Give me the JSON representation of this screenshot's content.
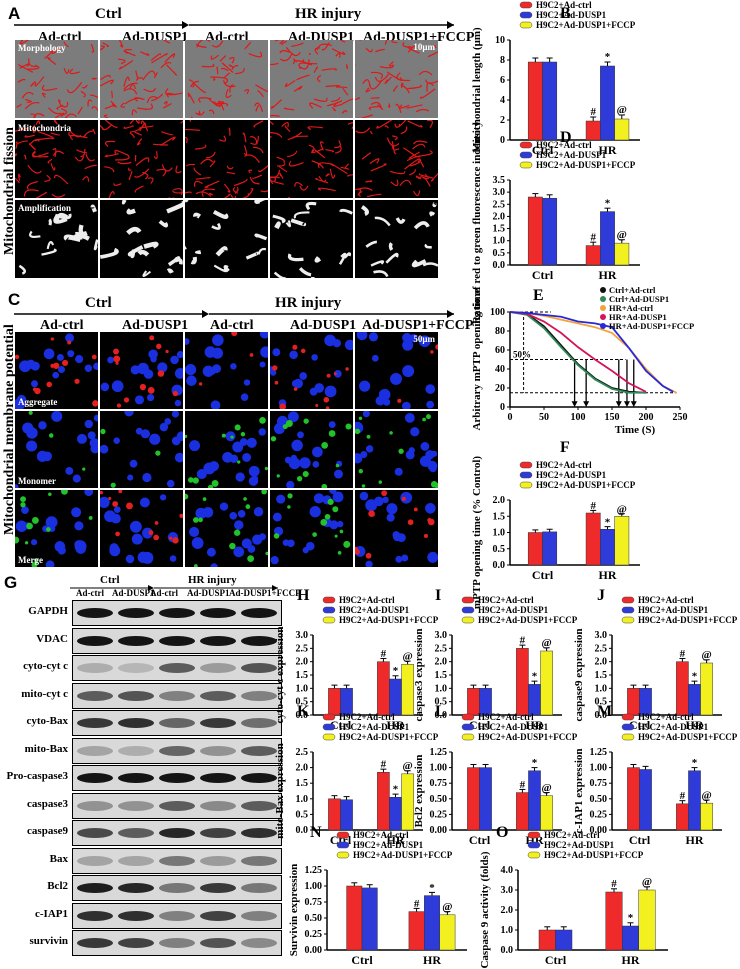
{
  "panelA": {
    "letter": "A",
    "groups": [
      "Ctrl",
      "HR injury"
    ],
    "columns": [
      "Ad-ctrl",
      "Ad-DUSP1",
      "Ad-ctrl",
      "Ad-DUSP1",
      "Ad-DUSP1+FCCP"
    ],
    "rows": [
      "Morphology",
      "Mitochondria",
      "Amplification"
    ],
    "side_label": "Mitochondrial fission",
    "scale": "10μm"
  },
  "panelC": {
    "letter": "C",
    "groups": [
      "Ctrl",
      "HR injury"
    ],
    "columns": [
      "Ad-ctrl",
      "Ad-DUSP1",
      "Ad-ctrl",
      "Ad-DUSP1",
      "Ad-DUSP1+FCCP"
    ],
    "rows": [
      "Aggregate",
      "Monomer",
      "Merge"
    ],
    "side_label": "Mitochondrial membrane potential",
    "scale": "50μm"
  },
  "panelG": {
    "letter": "G",
    "groups": [
      "Ctrl",
      "HR injury"
    ],
    "columns": [
      "Ad-ctrl",
      "Ad-DUSP1",
      "Ad-ctrl",
      "Ad-DUSP1",
      "Ad-DUSP1+FCCP"
    ],
    "bands": [
      "GAPDH",
      "VDAC",
      "cyto-cyt c",
      "mito-cyt c",
      "cyto-Bax",
      "mito-Bax",
      "Pro-caspase3",
      "caspase3",
      "caspase9",
      "Bax",
      "Bcl2",
      "c-IAP1",
      "survivin"
    ]
  },
  "legend": {
    "ctrl": "H9C2+Ad-ctrl",
    "dusp": "H9C2+Ad-DUSP1",
    "fccp": "H9C2+Ad-DUSP1+FCCP"
  },
  "colors": {
    "ctrl": "#ee2a2a",
    "dusp": "#2f3bd8",
    "fccp": "#f3f01f"
  },
  "chart_data": [
    {
      "id": "B",
      "type": "bar",
      "ylabel": "Mitochondrial length (μm)",
      "categories": [
        "Ctrl",
        "HR"
      ],
      "ylim": [
        0,
        10
      ],
      "ticks": [
        0,
        2,
        4,
        6,
        8,
        10
      ],
      "series": [
        {
          "name": "H9C2+Ad-ctrl",
          "values": [
            7.8,
            1.9
          ]
        },
        {
          "name": "H9C2+Ad-DUSP1",
          "values": [
            7.8,
            7.4
          ]
        },
        {
          "name": "H9C2+Ad-DUSP1+FCCP",
          "values": [
            null,
            2.1
          ]
        }
      ],
      "marks": [
        "#",
        "*",
        "@"
      ]
    },
    {
      "id": "D",
      "type": "bar",
      "ylabel": "Ratio of red to green fluorescence indensity",
      "categories": [
        "Ctrl",
        "HR"
      ],
      "ylim": [
        0,
        3.5
      ],
      "ticks": [
        0,
        0.5,
        1.0,
        1.5,
        2.0,
        2.5,
        3.0,
        3.5
      ],
      "series": [
        {
          "name": "H9C2+Ad-ctrl",
          "values": [
            2.8,
            0.8
          ]
        },
        {
          "name": "H9C2+Ad-DUSP1",
          "values": [
            2.75,
            2.2
          ]
        },
        {
          "name": "H9C2+Ad-DUSP1+FCCP",
          "values": [
            null,
            0.9
          ]
        }
      ],
      "marks": [
        "#",
        "*",
        "@"
      ]
    },
    {
      "id": "E",
      "type": "line",
      "ylabel": "Arbitrary mPTP opening time",
      "xlabel": "Time (S)",
      "xlim": [
        0,
        250
      ],
      "ylim": [
        0,
        100
      ],
      "xticks": [
        0,
        50,
        100,
        150,
        200,
        250
      ],
      "yticks": [
        0,
        20,
        40,
        60,
        80,
        100
      ],
      "annotation": "50%",
      "series": [
        {
          "name": "Ctrl+Ad-ctrl",
          "color": "#111111",
          "x": [
            0,
            25,
            50,
            75,
            100,
            125,
            150,
            175,
            200
          ],
          "y": [
            100,
            98,
            85,
            65,
            45,
            30,
            20,
            16,
            15
          ]
        },
        {
          "name": "Ctrl+Ad-DUSP1",
          "color": "#2e8b57",
          "x": [
            0,
            25,
            50,
            75,
            100,
            125,
            150,
            175,
            200
          ],
          "y": [
            100,
            97,
            83,
            63,
            44,
            29,
            19,
            15,
            15
          ]
        },
        {
          "name": "HR+Ad-ctrl",
          "color": "#f4a23a",
          "x": [
            0,
            25,
            50,
            75,
            100,
            125,
            150,
            175,
            200,
            225,
            245
          ],
          "y": [
            100,
            99,
            96,
            92,
            88,
            84,
            78,
            62,
            40,
            22,
            15
          ]
        },
        {
          "name": "HR+Ad-DUSP1",
          "color": "#d4145a",
          "x": [
            0,
            25,
            50,
            75,
            100,
            125,
            150,
            175,
            200
          ],
          "y": [
            100,
            98,
            90,
            78,
            63,
            50,
            38,
            25,
            16
          ]
        },
        {
          "name": "HR+Ad-DUSP1+FCCP",
          "color": "#2828d8",
          "x": [
            0,
            25,
            50,
            75,
            100,
            125,
            150,
            175,
            200,
            225,
            240
          ],
          "y": [
            100,
            99,
            97,
            95,
            90,
            88,
            84,
            62,
            38,
            22,
            16
          ]
        }
      ]
    },
    {
      "id": "F",
      "type": "bar",
      "ylabel": "mPTP opening time (% Control)",
      "categories": [
        "Ctrl",
        "HR"
      ],
      "ylim": [
        0,
        2.0
      ],
      "ticks": [
        0.0,
        0.5,
        1.0,
        1.5,
        2.0
      ],
      "series": [
        {
          "name": "H9C2+Ad-ctrl",
          "values": [
            1.0,
            1.6
          ]
        },
        {
          "name": "H9C2+Ad-DUSP1",
          "values": [
            1.02,
            1.1
          ]
        },
        {
          "name": "H9C2+Ad-DUSP1+FCCP",
          "values": [
            null,
            1.5
          ]
        }
      ],
      "marks": [
        "#",
        "*",
        "@"
      ]
    },
    {
      "id": "H",
      "type": "bar",
      "ylabel": "cyto-cyt c expression",
      "categories": [
        "Ctrl",
        "HR"
      ],
      "ylim": [
        0,
        3.0
      ],
      "ticks": [
        0.0,
        0.5,
        1.0,
        1.5,
        2.0,
        2.5,
        3.0
      ],
      "series": [
        {
          "name": "H9C2+Ad-ctrl",
          "values": [
            1.0,
            2.0
          ]
        },
        {
          "name": "H9C2+Ad-DUSP1",
          "values": [
            1.0,
            1.35
          ]
        },
        {
          "name": "H9C2+Ad-DUSP1+FCCP",
          "values": [
            null,
            1.9
          ]
        }
      ],
      "marks": [
        "#",
        "*",
        "@"
      ]
    },
    {
      "id": "I",
      "type": "bar",
      "ylabel": "caspase3 expression",
      "categories": [
        "Ctrl",
        "HR"
      ],
      "ylim": [
        0,
        3.0
      ],
      "ticks": [
        0.0,
        0.5,
        1.0,
        1.5,
        2.0,
        2.5,
        3.0
      ],
      "series": [
        {
          "name": "H9C2+Ad-ctrl",
          "values": [
            1.0,
            2.5
          ]
        },
        {
          "name": "H9C2+Ad-DUSP1",
          "values": [
            1.0,
            1.15
          ]
        },
        {
          "name": "H9C2+Ad-DUSP1+FCCP",
          "values": [
            null,
            2.4
          ]
        }
      ],
      "marks": [
        "#",
        "*",
        "@"
      ]
    },
    {
      "id": "J",
      "type": "bar",
      "ylabel": "caspase9 expression",
      "categories": [
        "Ctrl",
        "HR"
      ],
      "ylim": [
        0,
        3.0
      ],
      "ticks": [
        0.0,
        0.5,
        1.0,
        1.5,
        2.0,
        2.5,
        3.0
      ],
      "series": [
        {
          "name": "H9C2+Ad-ctrl",
          "values": [
            1.0,
            2.0
          ]
        },
        {
          "name": "H9C2+Ad-DUSP1",
          "values": [
            1.0,
            1.15
          ]
        },
        {
          "name": "H9C2+Ad-DUSP1+FCCP",
          "values": [
            null,
            1.95
          ]
        }
      ],
      "marks": [
        "#",
        "*",
        "@"
      ]
    },
    {
      "id": "K",
      "type": "bar",
      "ylabel": "mito-Bax expression",
      "categories": [
        "Ctrl",
        "HR"
      ],
      "ylim": [
        0,
        2.5
      ],
      "ticks": [
        0.0,
        0.5,
        1.0,
        1.5,
        2.0,
        2.5
      ],
      "series": [
        {
          "name": "H9C2+Ad-ctrl",
          "values": [
            1.0,
            1.85
          ]
        },
        {
          "name": "H9C2+Ad-DUSP1",
          "values": [
            0.97,
            1.05
          ]
        },
        {
          "name": "H9C2+Ad-DUSP1+FCCP",
          "values": [
            null,
            1.8
          ]
        }
      ],
      "marks": [
        "#",
        "*",
        "@"
      ]
    },
    {
      "id": "L",
      "type": "bar",
      "ylabel": "Bcl2 expression",
      "categories": [
        "Ctrl",
        "HR"
      ],
      "ylim": [
        0,
        1.25
      ],
      "ticks": [
        0.0,
        0.25,
        0.5,
        0.75,
        1.0,
        1.25
      ],
      "series": [
        {
          "name": "H9C2+Ad-ctrl",
          "values": [
            1.0,
            0.6
          ]
        },
        {
          "name": "H9C2+Ad-DUSP1",
          "values": [
            1.0,
            0.95
          ]
        },
        {
          "name": "H9C2+Ad-DUSP1+FCCP",
          "values": [
            null,
            0.55
          ]
        }
      ],
      "marks": [
        "#",
        "*",
        "@"
      ]
    },
    {
      "id": "M",
      "type": "bar",
      "ylabel": "c-IAP1 expression",
      "categories": [
        "Ctrl",
        "HR"
      ],
      "ylim": [
        0,
        1.25
      ],
      "ticks": [
        0.0,
        0.25,
        0.5,
        0.75,
        1.0,
        1.25
      ],
      "series": [
        {
          "name": "H9C2+Ad-ctrl",
          "values": [
            1.0,
            0.42
          ]
        },
        {
          "name": "H9C2+Ad-DUSP1",
          "values": [
            0.97,
            0.95
          ]
        },
        {
          "name": "H9C2+Ad-DUSP1+FCCP",
          "values": [
            null,
            0.43
          ]
        }
      ],
      "marks": [
        "#",
        "*",
        "@"
      ]
    },
    {
      "id": "N",
      "type": "bar",
      "ylabel": "Survivin expression",
      "categories": [
        "Ctrl",
        "HR"
      ],
      "ylim": [
        0,
        1.25
      ],
      "ticks": [
        0.0,
        0.25,
        0.5,
        0.75,
        1.0,
        1.25
      ],
      "series": [
        {
          "name": "H9C2+Ad-ctrl",
          "values": [
            1.0,
            0.6
          ]
        },
        {
          "name": "H9C2+Ad-DUSP1",
          "values": [
            0.97,
            0.85
          ]
        },
        {
          "name": "H9C2+Ad-DUSP1+FCCP",
          "values": [
            null,
            0.55
          ]
        }
      ],
      "marks": [
        "#",
        "*",
        "@"
      ]
    },
    {
      "id": "O",
      "type": "bar",
      "ylabel": "Caspase 9 activity (folds)",
      "categories": [
        "Ctrl",
        "HR"
      ],
      "ylim": [
        0,
        4.0
      ],
      "ticks": [
        0.0,
        1.0,
        2.0,
        3.0,
        4.0
      ],
      "series": [
        {
          "name": "H9C2+Ad-ctrl",
          "values": [
            1.0,
            2.9
          ]
        },
        {
          "name": "H9C2+Ad-DUSP1",
          "values": [
            1.0,
            1.2
          ]
        },
        {
          "name": "H9C2+Ad-DUSP1+FCCP",
          "values": [
            null,
            3.0
          ]
        }
      ],
      "marks": [
        "#",
        "*",
        "@"
      ]
    }
  ]
}
